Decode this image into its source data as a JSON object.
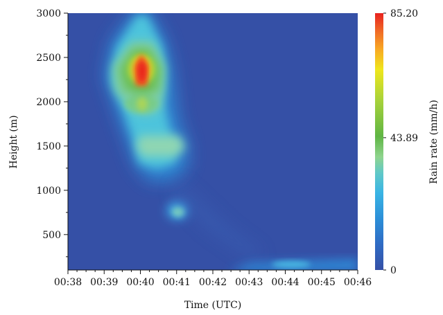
{
  "chart_data": {
    "type": "heatmap",
    "title": "",
    "xlabel": "Time (UTC)",
    "ylabel": "Height (m)",
    "x_ticks": [
      "00:38",
      "00:39",
      "00:40",
      "00:41",
      "00:42",
      "00:43",
      "00:44",
      "00:45",
      "00:46"
    ],
    "x_range": [
      "00:38",
      "00:46"
    ],
    "y_ticks": [
      500,
      1000,
      1500,
      2000,
      2500,
      3000
    ],
    "y_range": [
      100,
      3000
    ],
    "colorbar": {
      "label": "Rain rate (mm/h)",
      "tick_labels": [
        "85.20",
        "43.89",
        "0"
      ],
      "range": [
        0,
        85.2
      ],
      "colors": [
        "#3550a6",
        "#2f6bc4",
        "#2c8fd8",
        "#39b4e4",
        "#62c9c6",
        "#8fd48e",
        "#5fb544",
        "#a7d23a",
        "#efe61c",
        "#f8a824",
        "#f06a26",
        "#e8221f"
      ]
    },
    "background_value": 0,
    "features": [
      {
        "name": "upper core",
        "time_start": "00:39:05",
        "time_end": "00:40:55",
        "height_bottom": 1300,
        "height_top": 3000,
        "peak_time": "00:40:00",
        "peak_height": 2350,
        "peak_rain_rate": 85.2
      },
      {
        "name": "secondary maximum",
        "time": "00:40:00",
        "height": 2000,
        "rain_rate": 40
      },
      {
        "name": "layer near 1450 m",
        "time_start": "00:39:50",
        "time_end": "00:40:45",
        "height": 1450,
        "rain_rate": 28
      },
      {
        "name": "isolated patch",
        "time": "00:41:00",
        "height": 750,
        "rain_rate": 22
      },
      {
        "name": "near-surface band",
        "time_start": "00:42:30",
        "time_end": "00:46:00",
        "height": 150,
        "rain_rate": 10
      }
    ]
  }
}
